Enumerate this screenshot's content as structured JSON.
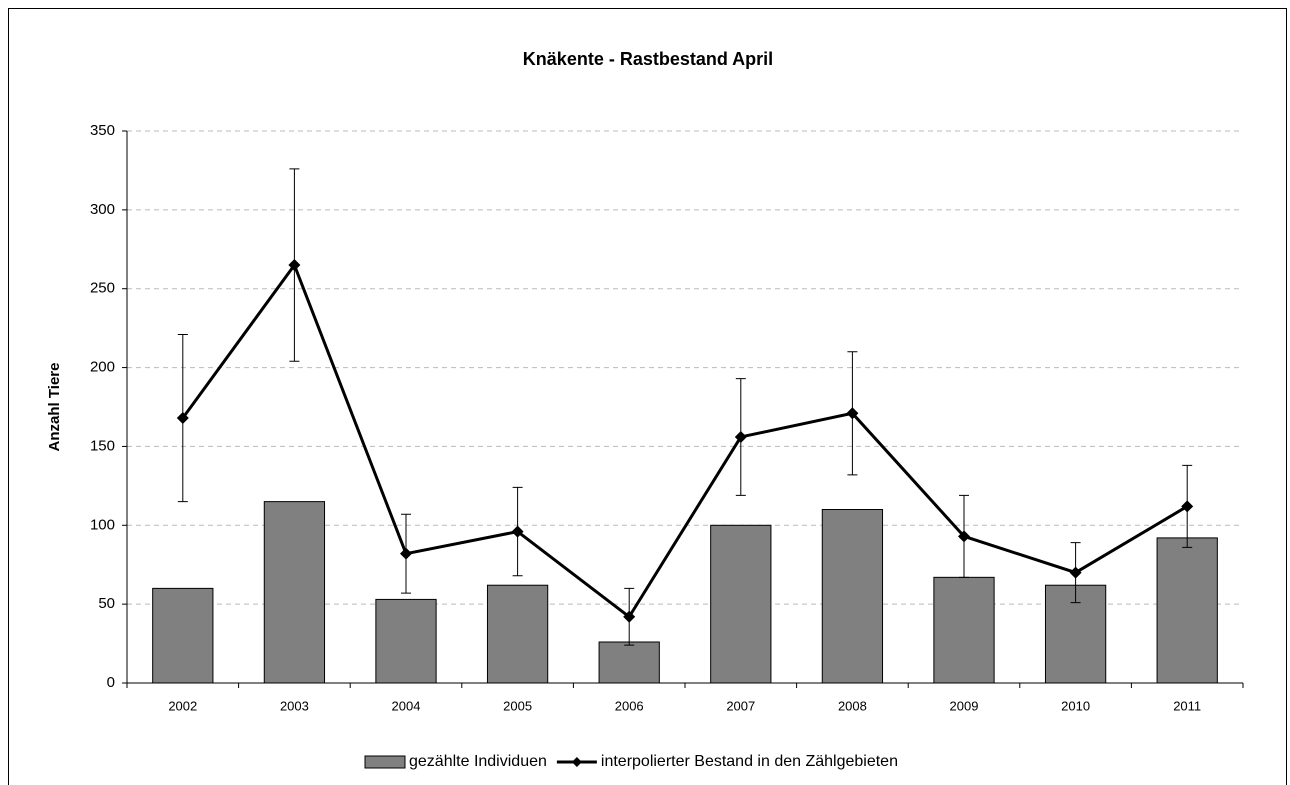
{
  "chart_data": {
    "type": "bar+line",
    "title": "Knäkente - Rastbestand April",
    "y_label": "Anzahl Tiere",
    "categories": [
      "2002",
      "2003",
      "2004",
      "2005",
      "2006",
      "2007",
      "2008",
      "2009",
      "2010",
      "2011"
    ],
    "series": [
      {
        "name": "gezählte Individuen",
        "type": "bar",
        "color": "#808080",
        "values": [
          60,
          115,
          53,
          62,
          26,
          100,
          110,
          67,
          62,
          92
        ]
      },
      {
        "name": "interpolierter Bestand in den Zählgebieten",
        "type": "line",
        "color": "#000000",
        "values": [
          168,
          265,
          82,
          96,
          42,
          156,
          171,
          93,
          70,
          112
        ],
        "errors": [
          53,
          61,
          25,
          28,
          18,
          37,
          39,
          26,
          19,
          26
        ]
      }
    ],
    "ylim": [
      0,
      350
    ],
    "yticks": [
      0,
      50,
      100,
      150,
      200,
      250,
      300,
      350
    ],
    "grid": true,
    "legend": "bottom"
  }
}
